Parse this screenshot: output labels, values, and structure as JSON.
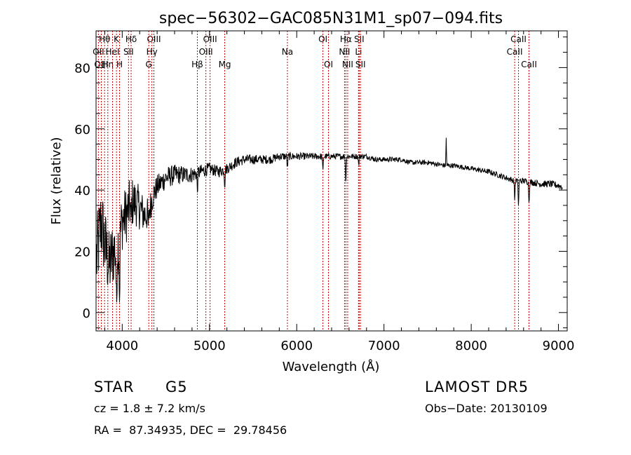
{
  "chart_data": {
    "type": "line",
    "title": "spec−56302−GAC085N31M1_sp07−094.fits",
    "xlabel": "Wavelength (Å)",
    "ylabel": "Flux (relative)",
    "xlim": [
      3700,
      9100
    ],
    "ylim": [
      -6,
      92
    ],
    "xticks": [
      4000,
      5000,
      6000,
      7000,
      8000,
      9000
    ],
    "yticks": [
      0,
      20,
      40,
      60,
      80
    ],
    "grid": false,
    "line_color": "#000000",
    "marker_color": "#cc0000",
    "continuum": [
      [
        3710,
        18
      ],
      [
        3760,
        30
      ],
      [
        3800,
        22
      ],
      [
        3850,
        15
      ],
      [
        3900,
        20
      ],
      [
        3950,
        22
      ],
      [
        4000,
        30
      ],
      [
        4050,
        32
      ],
      [
        4100,
        36
      ],
      [
        4150,
        36
      ],
      [
        4200,
        34
      ],
      [
        4250,
        32
      ],
      [
        4300,
        32
      ],
      [
        4350,
        38
      ],
      [
        4400,
        41
      ],
      [
        4500,
        44
      ],
      [
        4600,
        45
      ],
      [
        4700,
        45
      ],
      [
        4800,
        45
      ],
      [
        4900,
        46
      ],
      [
        5000,
        47
      ],
      [
        5100,
        46
      ],
      [
        5200,
        47
      ],
      [
        5300,
        49
      ],
      [
        5400,
        50
      ],
      [
        5500,
        50
      ],
      [
        5600,
        50
      ],
      [
        5700,
        50
      ],
      [
        5800,
        51
      ],
      [
        5900,
        51
      ],
      [
        6000,
        51
      ],
      [
        6100,
        51
      ],
      [
        6200,
        51
      ],
      [
        6300,
        51
      ],
      [
        6400,
        51
      ],
      [
        6500,
        51
      ],
      [
        6600,
        51
      ],
      [
        6700,
        51
      ],
      [
        6800,
        51
      ],
      [
        6900,
        50
      ],
      [
        7000,
        50
      ],
      [
        7100,
        50
      ],
      [
        7200,
        50
      ],
      [
        7300,
        49
      ],
      [
        7400,
        49
      ],
      [
        7500,
        49
      ],
      [
        7600,
        48.5
      ],
      [
        7700,
        48
      ],
      [
        7800,
        48
      ],
      [
        7900,
        47.5
      ],
      [
        8000,
        47
      ],
      [
        8100,
        46.5
      ],
      [
        8200,
        46
      ],
      [
        8300,
        45
      ],
      [
        8400,
        44
      ],
      [
        8500,
        43
      ],
      [
        8600,
        43
      ],
      [
        8700,
        42.5
      ],
      [
        8800,
        42
      ],
      [
        8900,
        42
      ],
      [
        9000,
        41.5
      ],
      [
        9040,
        41
      ]
    ],
    "absorption_features": [
      [
        3934,
        22
      ],
      [
        3969,
        20
      ],
      [
        4102,
        8
      ],
      [
        4300,
        5
      ],
      [
        4861,
        6
      ],
      [
        5175,
        5
      ],
      [
        5893,
        4
      ],
      [
        6300,
        5
      ],
      [
        6563,
        9
      ],
      [
        6710,
        3
      ],
      [
        8498,
        6
      ],
      [
        8542,
        8
      ],
      [
        8662,
        7
      ]
    ],
    "emission_features": [
      [
        7713,
        9
      ]
    ],
    "noise": [
      [
        3700,
        14
      ],
      [
        4000,
        10
      ],
      [
        4400,
        4
      ],
      [
        5000,
        2
      ],
      [
        6000,
        1.2
      ],
      [
        7000,
        0.8
      ],
      [
        8000,
        0.8
      ],
      [
        9000,
        1.2
      ]
    ],
    "line_markers": [
      {
        "label": "Hθ",
        "x": 3798,
        "row": 0
      },
      {
        "label": "OII",
        "x": 3727,
        "row": 1
      },
      {
        "label": "OIII",
        "x": 3760,
        "row": 2
      },
      {
        "label": "Hη",
        "x": 3835,
        "row": 2
      },
      {
        "label": "K",
        "x": 3934,
        "row": 0
      },
      {
        "label": "HeI",
        "x": 3889,
        "row": 1
      },
      {
        "label": "H",
        "x": 3969,
        "row": 2
      },
      {
        "label": "Hδ",
        "x": 4102,
        "row": 0
      },
      {
        "label": "SII",
        "x": 4072,
        "row": 1
      },
      {
        "label": "OIII",
        "x": 4363,
        "row": 0
      },
      {
        "label": "Hγ",
        "x": 4340,
        "row": 1
      },
      {
        "label": "G",
        "x": 4304,
        "row": 2
      },
      {
        "label": "OIII",
        "x": 5007,
        "row": 0
      },
      {
        "label": "OIII",
        "x": 4959,
        "row": 1
      },
      {
        "label": "Hβ",
        "x": 4861,
        "row": 2
      },
      {
        "label": "Mg",
        "x": 5175,
        "row": 2
      },
      {
        "label": "Na",
        "x": 5893,
        "row": 1
      },
      {
        "label": "OI",
        "x": 6300,
        "row": 0
      },
      {
        "label": "OI",
        "x": 6364,
        "row": 2
      },
      {
        "label": "Hα",
        "x": 6563,
        "row": 0
      },
      {
        "label": "NII",
        "x": 6548,
        "row": 1
      },
      {
        "label": "NII",
        "x": 6584,
        "row": 2
      },
      {
        "label": "SII",
        "x": 6716,
        "row": 0
      },
      {
        "label": "Li",
        "x": 6708,
        "row": 1
      },
      {
        "label": "SII",
        "x": 6731,
        "row": 2
      },
      {
        "label": "CaII",
        "x": 8542,
        "row": 0
      },
      {
        "label": "CaII",
        "x": 8498,
        "row": 1
      },
      {
        "label": "CaII",
        "x": 8662,
        "row": 2
      }
    ]
  },
  "info": {
    "class_label": "STAR",
    "subclass_label": "G5",
    "survey": "LAMOST DR5",
    "cz": "cz = 1.8 ± 7.2 km/s",
    "obs_date": "Obs−Date: 20130109",
    "coords": "RA =  87.34935, DEC =  29.78456"
  }
}
